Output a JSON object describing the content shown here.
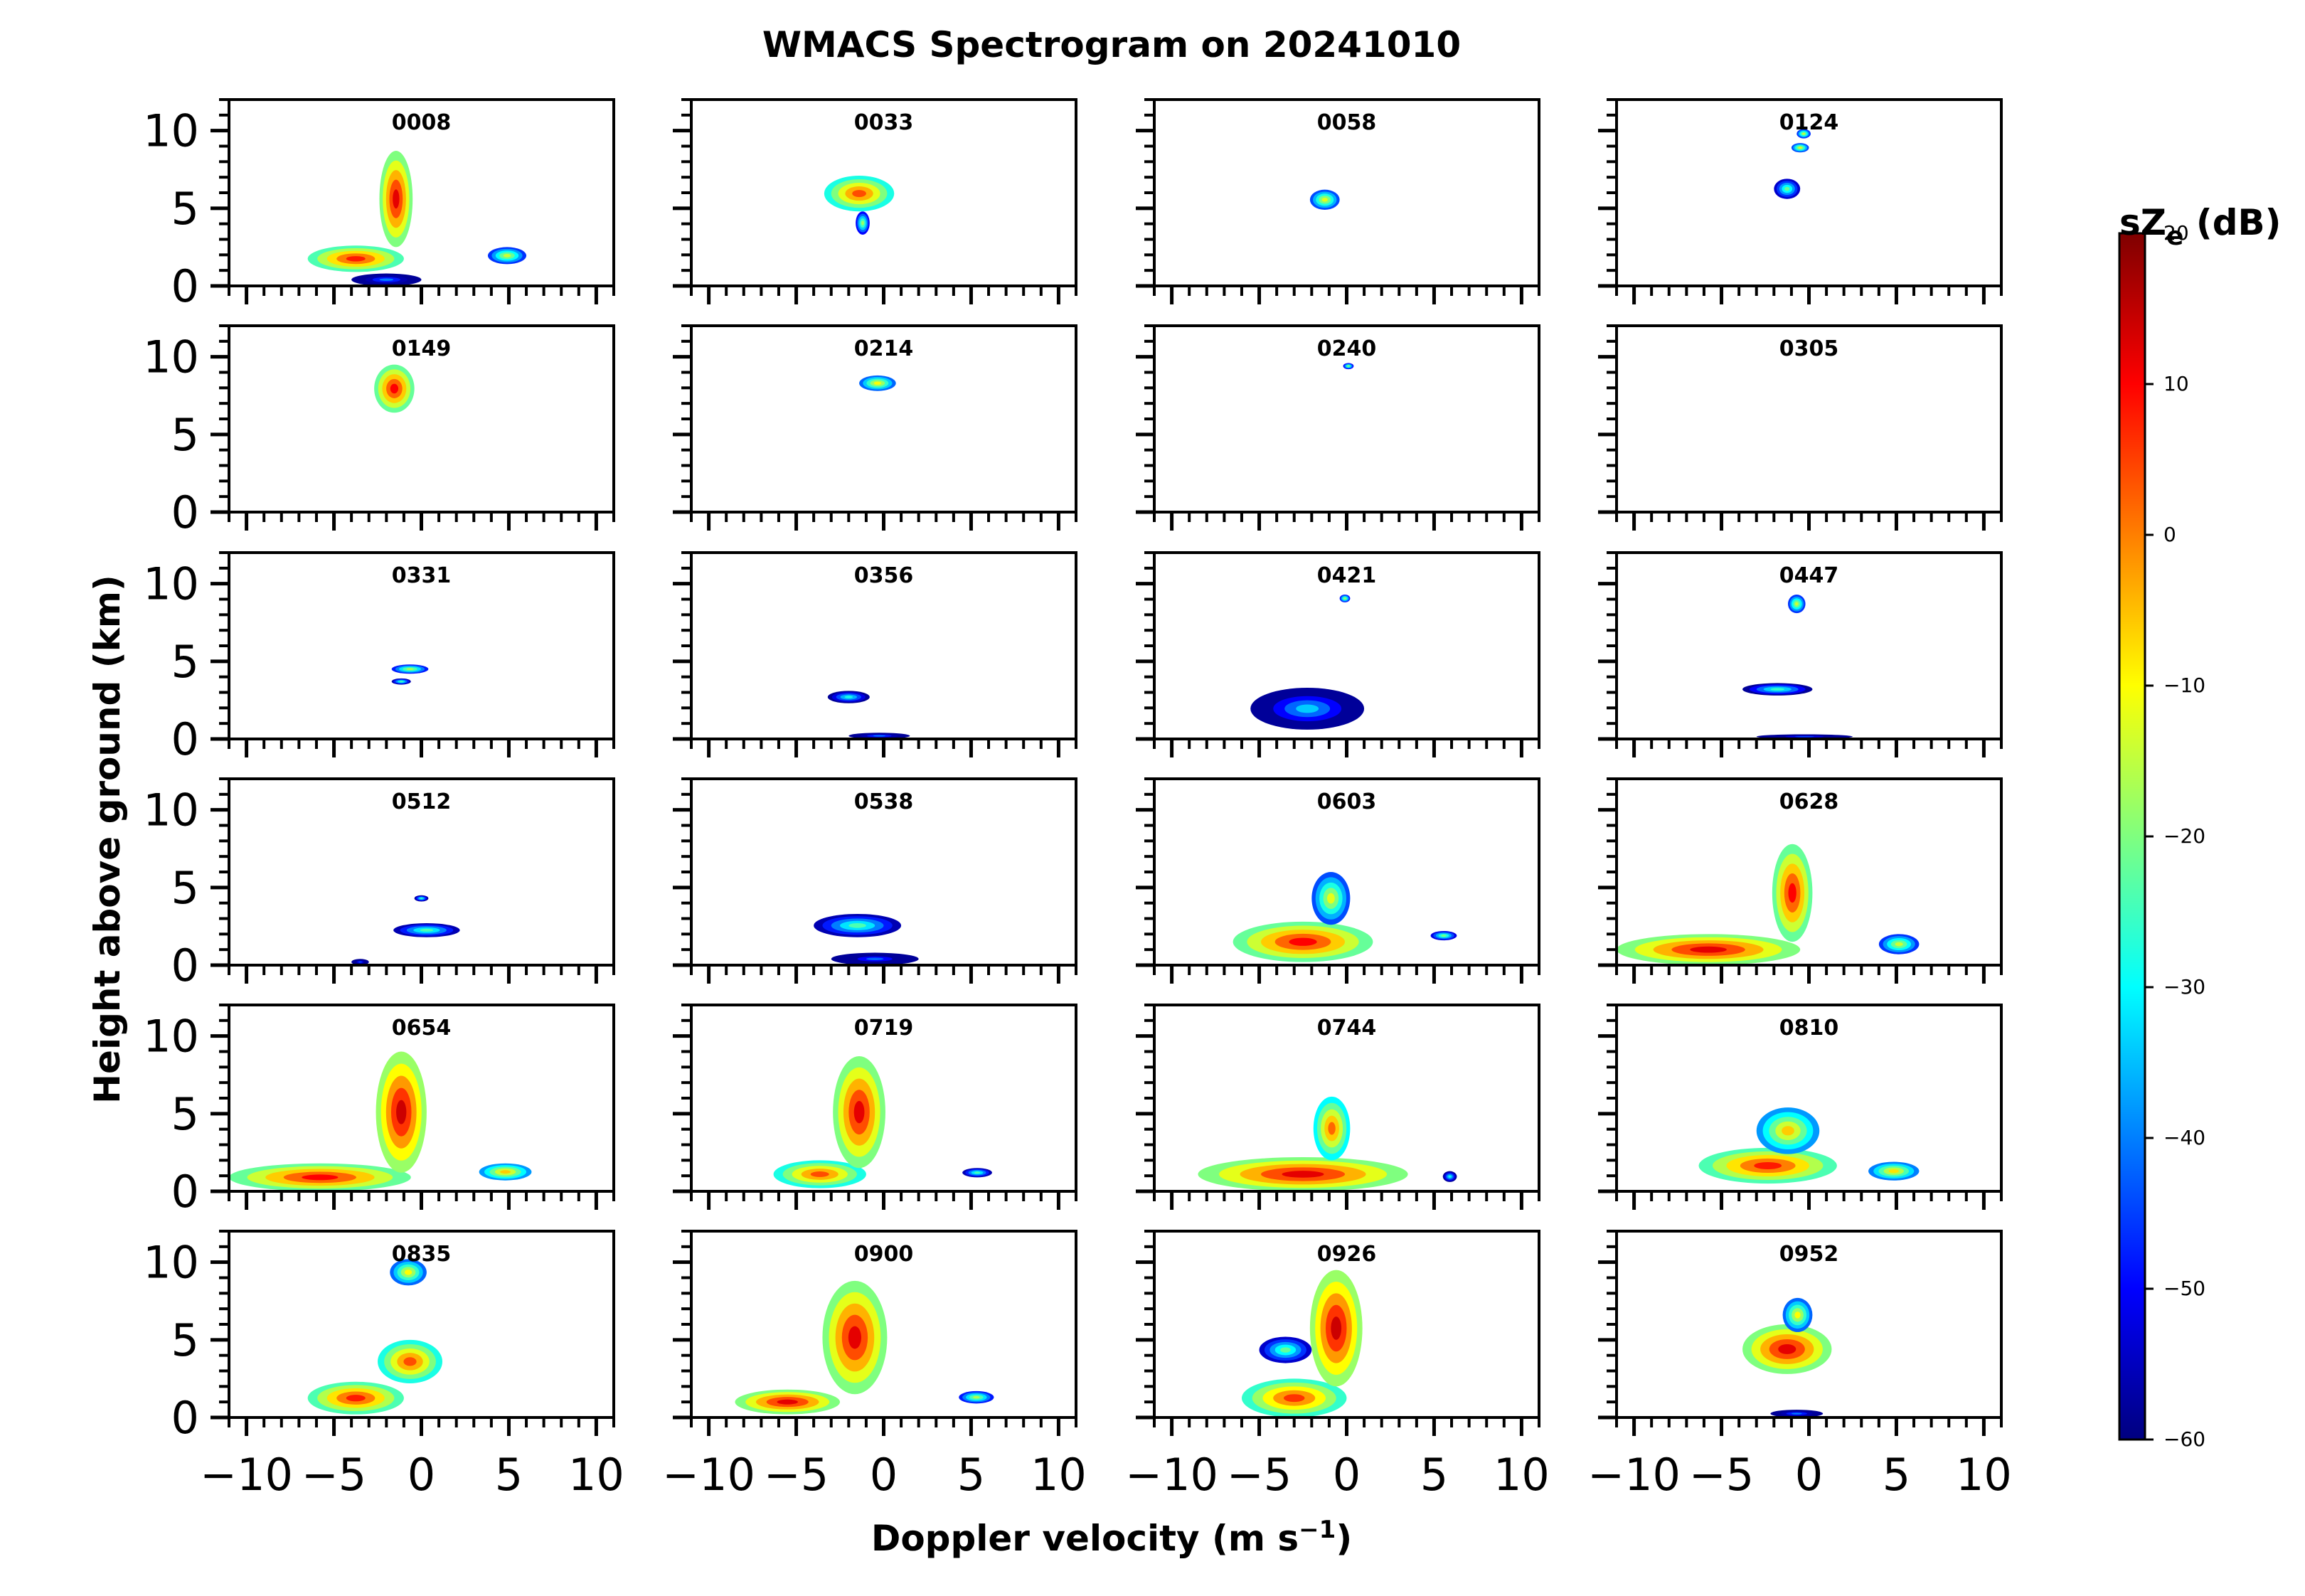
{
  "figure": {
    "title": "WMACS Spectrogram on 20241010",
    "xlabel_main": "Doppler velocity (m s",
    "xlabel_exp": "−1",
    "xlabel_close": ")",
    "ylabel": "Height above ground (km)"
  },
  "colorbar": {
    "label_main": "sZ",
    "label_sub": "e",
    "label_unit": " (dB)",
    "ticks": [
      20,
      10,
      0,
      -10,
      -20,
      -30,
      -40,
      -50,
      -60
    ],
    "tick_labels": [
      "20",
      "10",
      "0",
      "−10",
      "−20",
      "−30",
      "−40",
      "−50",
      "−60"
    ],
    "range": [
      -60,
      20
    ],
    "colormap": "jet",
    "stops": [
      "#00007f",
      "#0000ff",
      "#007fff",
      "#00ffff",
      "#7fff7f",
      "#ffff00",
      "#ff7f00",
      "#ff0000",
      "#7f0000"
    ]
  },
  "chart_data": {
    "type": "heatmap",
    "title": "WMACS Spectrogram on 20241010",
    "xlabel": "Doppler velocity (m s−1)",
    "ylabel": "Height above ground (km)",
    "xlim": [
      -11,
      11
    ],
    "ylim": [
      0,
      12
    ],
    "xticks": [
      -10,
      -5,
      0,
      5,
      10
    ],
    "xtick_labels": [
      "−10",
      "−5",
      "0",
      "5",
      "10"
    ],
    "yticks": [
      0,
      5,
      10
    ],
    "ytick_labels": [
      "0",
      "5",
      "10"
    ],
    "grid": false,
    "value_units": "dB",
    "panels": [
      {
        "time": "0008",
        "echoes": [
          {
            "v": [
              -6.5,
              -1
            ],
            "h": [
              0.9,
              2.6
            ],
            "peak": 8
          },
          {
            "v": [
              -2.4,
              -0.5
            ],
            "h": [
              2.5,
              8.7
            ],
            "peak": 12
          },
          {
            "v": [
              -4,
              0
            ],
            "h": [
              0,
              0.8
            ],
            "peak": -40
          },
          {
            "v": [
              3.8,
              6
            ],
            "h": [
              1.4,
              2.5
            ],
            "peak": -14
          }
        ]
      },
      {
        "time": "0033",
        "echoes": [
          {
            "v": [
              -3.4,
              0.6
            ],
            "h": [
              4.8,
              7.1
            ],
            "peak": 4
          },
          {
            "v": [
              -1.6,
              -0.8
            ],
            "h": [
              3.3,
              4.8
            ],
            "peak": -18
          }
        ]
      },
      {
        "time": "0058",
        "echoes": [
          {
            "v": [
              -2.1,
              -0.4
            ],
            "h": [
              4.9,
              6.2
            ],
            "peak": -12
          }
        ]
      },
      {
        "time": "0124",
        "echoes": [
          {
            "v": [
              -0.7,
              0.1
            ],
            "h": [
              9.5,
              10.1
            ],
            "peak": -14
          },
          {
            "v": [
              -1.0,
              0.0
            ],
            "h": [
              8.6,
              9.2
            ],
            "peak": -12
          },
          {
            "v": [
              -2.0,
              -0.5
            ],
            "h": [
              5.6,
              6.9
            ],
            "peak": -22
          }
        ]
      },
      {
        "time": "0149",
        "echoes": [
          {
            "v": [
              -2.7,
              -0.4
            ],
            "h": [
              6.4,
              9.5
            ],
            "peak": 10
          }
        ]
      },
      {
        "time": "0214",
        "echoes": [
          {
            "v": [
              -1.4,
              0.7
            ],
            "h": [
              7.8,
              8.8
            ],
            "peak": -10
          }
        ]
      },
      {
        "time": "0240",
        "echoes": [
          {
            "v": [
              -0.2,
              0.4
            ],
            "h": [
              9.2,
              9.6
            ],
            "peak": -18
          }
        ]
      },
      {
        "time": "0305",
        "echoes": []
      },
      {
        "time": "0331",
        "echoes": [
          {
            "v": [
              -1.7,
              0.4
            ],
            "h": [
              4.2,
              4.8
            ],
            "peak": -16
          },
          {
            "v": [
              -1.7,
              -0.6
            ],
            "h": [
              3.5,
              3.9
            ],
            "peak": -24
          }
        ]
      },
      {
        "time": "0356",
        "echoes": [
          {
            "v": [
              -3.2,
              -0.8
            ],
            "h": [
              2.3,
              3.1
            ],
            "peak": -28
          },
          {
            "v": [
              -2.0,
              1.5
            ],
            "h": [
              0,
              0.4
            ],
            "peak": -40
          }
        ]
      },
      {
        "time": "0421",
        "echoes": [
          {
            "v": [
              -5.5,
              1.0
            ],
            "h": [
              0.6,
              3.3
            ],
            "peak": -34
          },
          {
            "v": [
              -0.4,
              0.2
            ],
            "h": [
              8.8,
              9.3
            ],
            "peak": -16
          }
        ]
      },
      {
        "time": "0447",
        "echoes": [
          {
            "v": [
              -1.2,
              -0.2
            ],
            "h": [
              8.1,
              9.3
            ],
            "peak": -14
          },
          {
            "v": [
              -3.8,
              0.2
            ],
            "h": [
              2.8,
              3.6
            ],
            "peak": -26
          },
          {
            "v": [
              -3.0,
              2.5
            ],
            "h": [
              0,
              0.3
            ],
            "peak": -44
          }
        ]
      },
      {
        "time": "0512",
        "echoes": [
          {
            "v": [
              -1.6,
              2.2
            ],
            "h": [
              1.8,
              2.7
            ],
            "peak": -24
          },
          {
            "v": [
              -0.4,
              0.4
            ],
            "h": [
              4.1,
              4.5
            ],
            "peak": -26
          },
          {
            "v": [
              -4.0,
              -3.0
            ],
            "h": [
              0,
              0.4
            ],
            "peak": -44
          }
        ]
      },
      {
        "time": "0538",
        "echoes": [
          {
            "v": [
              -4.0,
              1.0
            ],
            "h": [
              1.8,
              3.3
            ],
            "peak": -24
          },
          {
            "v": [
              -3.0,
              2.0
            ],
            "h": [
              0,
              0.8
            ],
            "peak": -42
          }
        ]
      },
      {
        "time": "0603",
        "echoes": [
          {
            "v": [
              -6.5,
              1.5
            ],
            "h": [
              0.2,
              2.8
            ],
            "peak": 10
          },
          {
            "v": [
              -2.0,
              0.2
            ],
            "h": [
              2.6,
              6.0
            ],
            "peak": -12
          },
          {
            "v": [
              4.8,
              6.3
            ],
            "h": [
              1.6,
              2.2
            ],
            "peak": -20
          }
        ]
      },
      {
        "time": "0628",
        "echoes": [
          {
            "v": [
              -11,
              -0.5
            ],
            "h": [
              0,
              2.0
            ],
            "peak": 12
          },
          {
            "v": [
              -2.1,
              0.2
            ],
            "h": [
              1.5,
              7.8
            ],
            "peak": 10
          },
          {
            "v": [
              4.0,
              6.3
            ],
            "h": [
              0.7,
              2.0
            ],
            "peak": -14
          }
        ]
      },
      {
        "time": "0654",
        "echoes": [
          {
            "v": [
              -11,
              -0.6
            ],
            "h": [
              0,
              1.8
            ],
            "peak": 10
          },
          {
            "v": [
              -2.6,
              0.3
            ],
            "h": [
              1.2,
              9.0
            ],
            "peak": 14
          },
          {
            "v": [
              3.3,
              6.3
            ],
            "h": [
              0.7,
              1.8
            ],
            "peak": -6
          }
        ]
      },
      {
        "time": "0719",
        "echoes": [
          {
            "v": [
              -6.3,
              -1.0
            ],
            "h": [
              0.2,
              2.0
            ],
            "peak": 4
          },
          {
            "v": [
              -2.9,
              0.1
            ],
            "h": [
              1.5,
              8.7
            ],
            "peak": 12
          },
          {
            "v": [
              4.5,
              6.2
            ],
            "h": [
              0.9,
              1.5
            ],
            "peak": -24
          }
        ]
      },
      {
        "time": "0744",
        "echoes": [
          {
            "v": [
              -8.5,
              3.5
            ],
            "h": [
              0,
              2.2
            ],
            "peak": 12
          },
          {
            "v": [
              -1.9,
              0.2
            ],
            "h": [
              2.0,
              6.1
            ],
            "peak": 2
          },
          {
            "v": [
              5.5,
              6.3
            ],
            "h": [
              0.6,
              1.3
            ],
            "peak": -28
          }
        ]
      },
      {
        "time": "0810",
        "echoes": [
          {
            "v": [
              -6.3,
              1.6
            ],
            "h": [
              0.5,
              2.8
            ],
            "peak": 8
          },
          {
            "v": [
              -3.0,
              0.6
            ],
            "h": [
              2.4,
              5.4
            ],
            "peak": -6
          },
          {
            "v": [
              3.4,
              6.3
            ],
            "h": [
              0.7,
              1.9
            ],
            "peak": -8
          }
        ]
      },
      {
        "time": "0835",
        "echoes": [
          {
            "v": [
              -6.5,
              -1.0
            ],
            "h": [
              0.2,
              2.3
            ],
            "peak": 8
          },
          {
            "v": [
              -2.5,
              1.2
            ],
            "h": [
              2.2,
              5.0
            ],
            "peak": 4
          },
          {
            "v": [
              -1.8,
              0.3
            ],
            "h": [
              8.5,
              10.2
            ],
            "peak": -10
          }
        ]
      },
      {
        "time": "0900",
        "echoes": [
          {
            "v": [
              -8.5,
              -2.5
            ],
            "h": [
              0.2,
              1.8
            ],
            "peak": 12
          },
          {
            "v": [
              -3.5,
              0.2
            ],
            "h": [
              1.5,
              8.8
            ],
            "peak": 12
          },
          {
            "v": [
              4.3,
              6.3
            ],
            "h": [
              0.9,
              1.7
            ],
            "peak": -16
          }
        ]
      },
      {
        "time": "0926",
        "echoes": [
          {
            "v": [
              -6.0,
              0.0
            ],
            "h": [
              0,
              2.5
            ],
            "peak": 6
          },
          {
            "v": [
              -2.1,
              0.9
            ],
            "h": [
              2.0,
              9.5
            ],
            "peak": 14
          },
          {
            "v": [
              -5.0,
              -2.0
            ],
            "h": [
              3.5,
              5.2
            ],
            "peak": -22
          }
        ]
      },
      {
        "time": "0952",
        "echoes": [
          {
            "v": [
              -3.8,
              1.3
            ],
            "h": [
              2.8,
              6.0
            ],
            "peak": 12
          },
          {
            "v": [
              -1.5,
              0.2
            ],
            "h": [
              5.5,
              7.7
            ],
            "peak": -10
          },
          {
            "v": [
              -2.2,
              0.8
            ],
            "h": [
              0,
              0.5
            ],
            "peak": -40
          }
        ]
      }
    ]
  }
}
